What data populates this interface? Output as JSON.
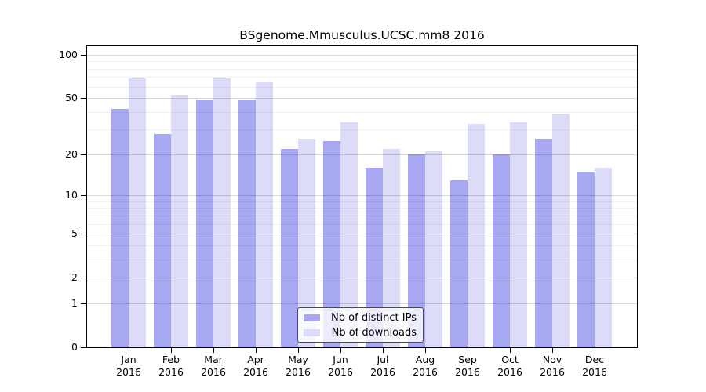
{
  "chart_data": {
    "type": "bar",
    "title": "BSgenome.Mmusculus.UCSC.mm8 2016",
    "categories": [
      {
        "month": "Jan",
        "year": "2016"
      },
      {
        "month": "Feb",
        "year": "2016"
      },
      {
        "month": "Mar",
        "year": "2016"
      },
      {
        "month": "Apr",
        "year": "2016"
      },
      {
        "month": "May",
        "year": "2016"
      },
      {
        "month": "Jun",
        "year": "2016"
      },
      {
        "month": "Jul",
        "year": "2016"
      },
      {
        "month": "Aug",
        "year": "2016"
      },
      {
        "month": "Sep",
        "year": "2016"
      },
      {
        "month": "Oct",
        "year": "2016"
      },
      {
        "month": "Nov",
        "year": "2016"
      },
      {
        "month": "Dec",
        "year": "2016"
      }
    ],
    "series": [
      {
        "name": "Nb of distinct IPs",
        "color": "#a8a8f2",
        "values": [
          42,
          28,
          49,
          49,
          22,
          25,
          16,
          20,
          13,
          20,
          26,
          15
        ]
      },
      {
        "name": "Nb of downloads",
        "color": "#dcdcf8",
        "values": [
          69,
          53,
          69,
          65,
          26,
          34,
          22,
          21,
          33,
          34,
          39,
          16
        ]
      }
    ],
    "y_axis": {
      "scale": "log10(1+value)",
      "ticks": [
        0,
        1,
        2,
        5,
        10,
        20,
        50,
        100
      ],
      "minor_ticks": [
        3,
        4,
        6,
        7,
        8,
        9,
        30,
        40,
        60,
        70,
        80,
        90
      ],
      "range_top": 115
    },
    "xlabel": "",
    "ylabel": "",
    "grid": true,
    "legend": {
      "position": "bottom-center",
      "entries": [
        "Nb of distinct IPs",
        "Nb of downloads"
      ]
    }
  }
}
